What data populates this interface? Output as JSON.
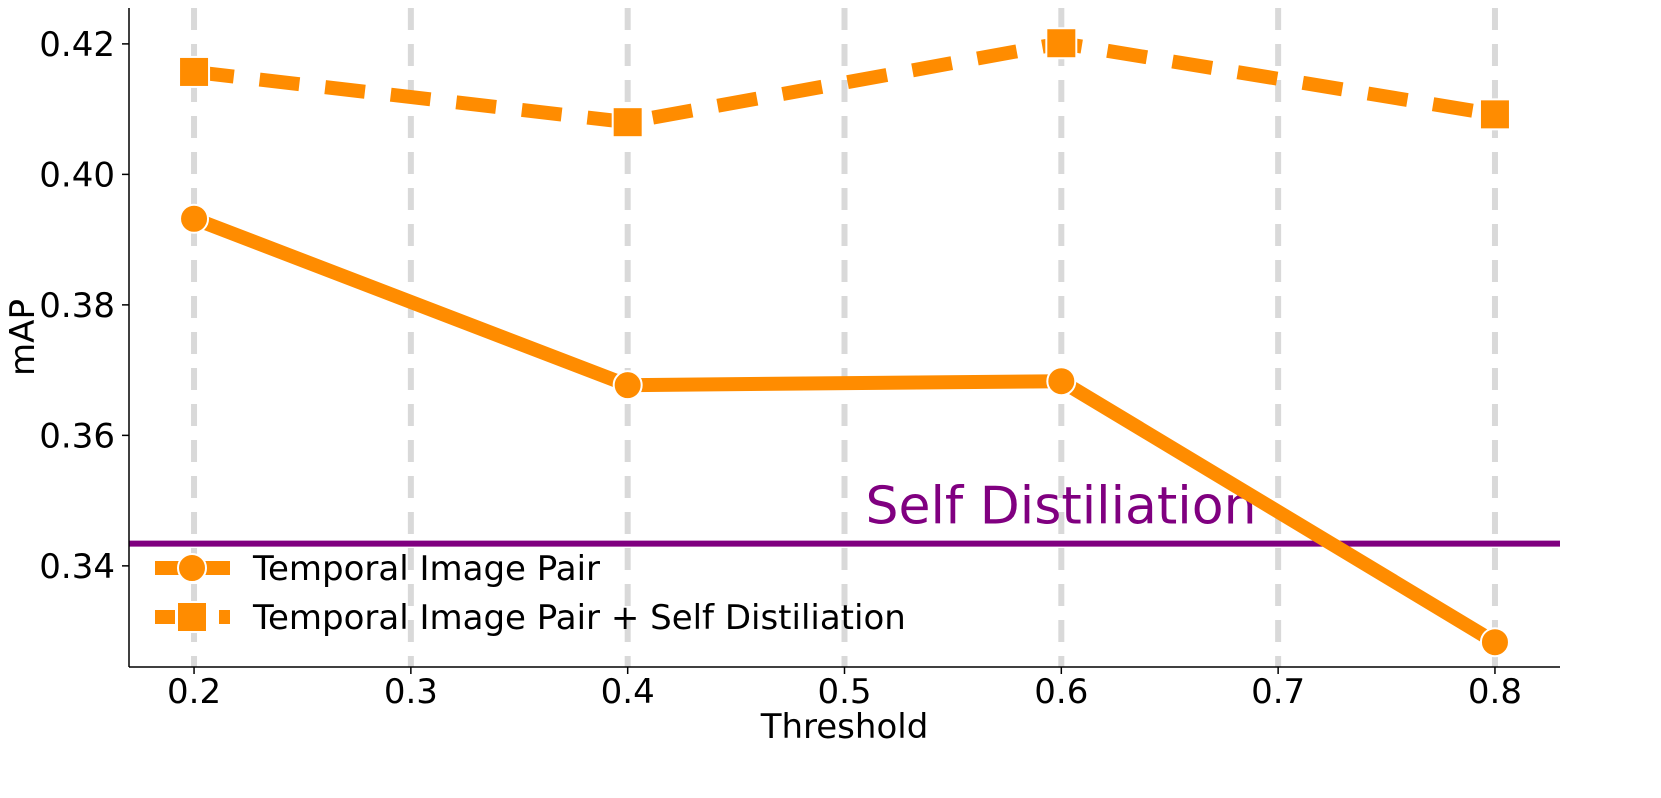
{
  "chart_data": {
    "type": "line",
    "title": "",
    "xlabel": "Threshold",
    "ylabel": "mAP",
    "x": [
      0.2,
      0.4,
      0.6,
      0.8
    ],
    "xlim": [
      0.17,
      0.83
    ],
    "ylim": [
      0.3245,
      0.4255
    ],
    "xticks": [
      0.2,
      0.3,
      0.4,
      0.5,
      0.6,
      0.7,
      0.8
    ],
    "xtick_labels": [
      "0.2",
      "0.3",
      "0.4",
      "0.5",
      "0.6",
      "0.7",
      "0.8"
    ],
    "yticks": [
      0.34,
      0.36,
      0.38,
      0.4,
      0.42
    ],
    "ytick_labels": [
      "0.34",
      "0.36",
      "0.38",
      "0.40",
      "0.42"
    ],
    "grid": {
      "x": true,
      "y": false,
      "style": "dashed",
      "color": "#d9d9d9"
    },
    "series": [
      {
        "name": "Temporal Image Pair",
        "values": [
          0.3932,
          0.3677,
          0.3683,
          0.3283
        ],
        "color": "#ff8c00",
        "linestyle": "solid",
        "marker": "circle"
      },
      {
        "name": "Temporal Image Pair + Self Distiliation",
        "values": [
          0.4157,
          0.408,
          0.4201,
          0.4092
        ],
        "color": "#ff8c00",
        "linestyle": "dashed",
        "marker": "square"
      }
    ],
    "reference_lines": [
      {
        "label": "Self Distiliation",
        "y": 0.3434,
        "color": "#800080"
      }
    ],
    "legend_position": "lower-left"
  }
}
